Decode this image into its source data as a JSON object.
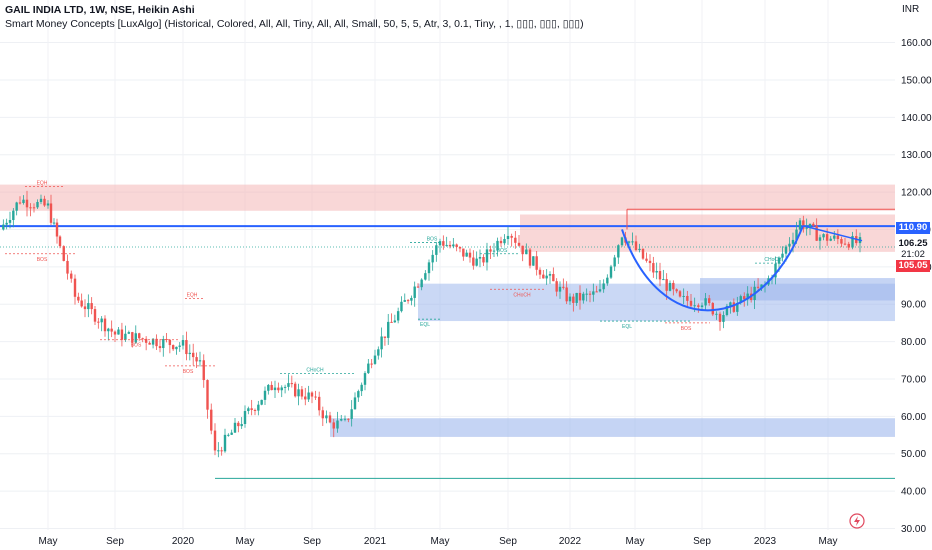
{
  "header": {
    "title": "GAIL INDIA LTD, 1W, NSE, Heikin Ashi",
    "indicator": "Smart Money Concepts [LuxAlgo] (Historical, Colored, All, All, Tiny, All, All, Small, 50, 5, 5, Atr, 3, 0.1, Tiny, , 1, ▯▯▯, ▯▯▯, ▯▯▯)"
  },
  "axis": {
    "currency": "INR",
    "y_ticks": [
      "160.00",
      "150.00",
      "140.00",
      "130.00",
      "120.00",
      "110.00",
      "100.00",
      "90.00",
      "80.00",
      "70.00",
      "60.00",
      "50.00",
      "40.00",
      "30.00"
    ],
    "x_ticks": [
      "May",
      "Sep",
      "2020",
      "May",
      "Sep",
      "2021",
      "May",
      "Sep",
      "2022",
      "May",
      "Sep",
      "2023",
      "May"
    ]
  },
  "price_labels": {
    "level_line": "110.90",
    "last_price": "106.25",
    "countdown": "21:02",
    "low_mark": "105.05"
  },
  "annotations": [
    "EQH",
    "BOS",
    "EQH",
    "BOS",
    "BOS",
    "CHoCH",
    "BOS",
    "BOS",
    "CHoCH",
    "EQL",
    "EQL",
    "BOS",
    "CHoCH"
  ],
  "colors": {
    "up": "#26a69a",
    "down": "#ef5350",
    "level_line": "#2962ff",
    "supply_zone": "#f4b6b6",
    "demand_zone": "#9fb8ec",
    "tag_blue": "#2962ff",
    "tag_green": "#26a69a",
    "tag_red": "#f23645"
  },
  "chart_data": {
    "type": "candlestick",
    "x": [
      "2019-01",
      "2019-03",
      "2019-05",
      "2019-06",
      "2019-07",
      "2019-09",
      "2019-11",
      "2020-01",
      "2020-03",
      "2020-04",
      "2020-05",
      "2020-07",
      "2020-09",
      "2020-10",
      "2020-11",
      "2021-01",
      "2021-03",
      "2021-05",
      "2021-07",
      "2021-09",
      "2021-10",
      "2021-12",
      "2022-02",
      "2022-04",
      "2022-05",
      "2022-07",
      "2022-09",
      "2022-10",
      "2022-12",
      "2023-02",
      "2023-03",
      "2023-05",
      "2023-06"
    ],
    "series": [
      {
        "values": [
          110,
          118,
          116,
          105,
          92,
          82,
          80,
          79,
          74,
          50,
          60,
          69,
          65,
          58,
          58,
          78,
          96,
          107,
          101,
          110,
          102,
          91,
          93,
          109,
          100,
          91,
          91,
          87,
          95,
          112,
          108,
          107,
          106.25
        ]
      }
    ],
    "ylim": [
      30,
      165
    ],
    "levels": [
      110.9,
      105.05,
      115.4,
      43.4
    ],
    "supply_zones": [
      [
        115,
        122
      ],
      [
        104,
        114
      ]
    ],
    "demand_zones": [
      [
        85.5,
        95.5
      ],
      [
        91,
        97
      ],
      [
        54.5,
        59.5
      ]
    ]
  }
}
